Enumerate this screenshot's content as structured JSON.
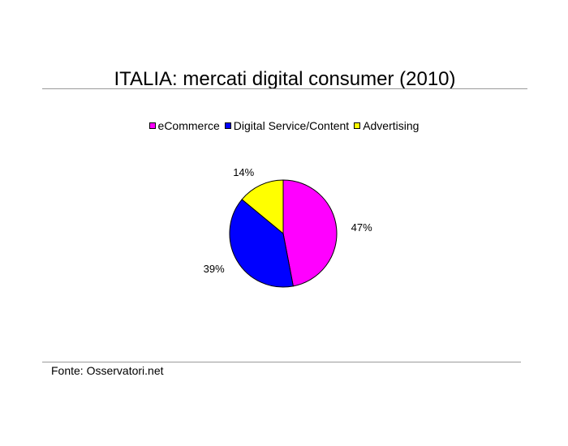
{
  "chart_data": {
    "type": "pie",
    "title": "ITALIA: mercati digital consumer (2010)",
    "legend_position": "top",
    "slices": [
      {
        "label": "eCommerce",
        "value": 47,
        "display": "47%",
        "color": "#ff00ff"
      },
      {
        "label": "Digital Service/Content",
        "value": 39,
        "display": "39%",
        "color": "#0000ff"
      },
      {
        "label": "Advertising",
        "value": 14,
        "display": "14%",
        "color": "#ffff00"
      }
    ]
  },
  "footer": {
    "source": "Fonte: Osservatori.net"
  }
}
